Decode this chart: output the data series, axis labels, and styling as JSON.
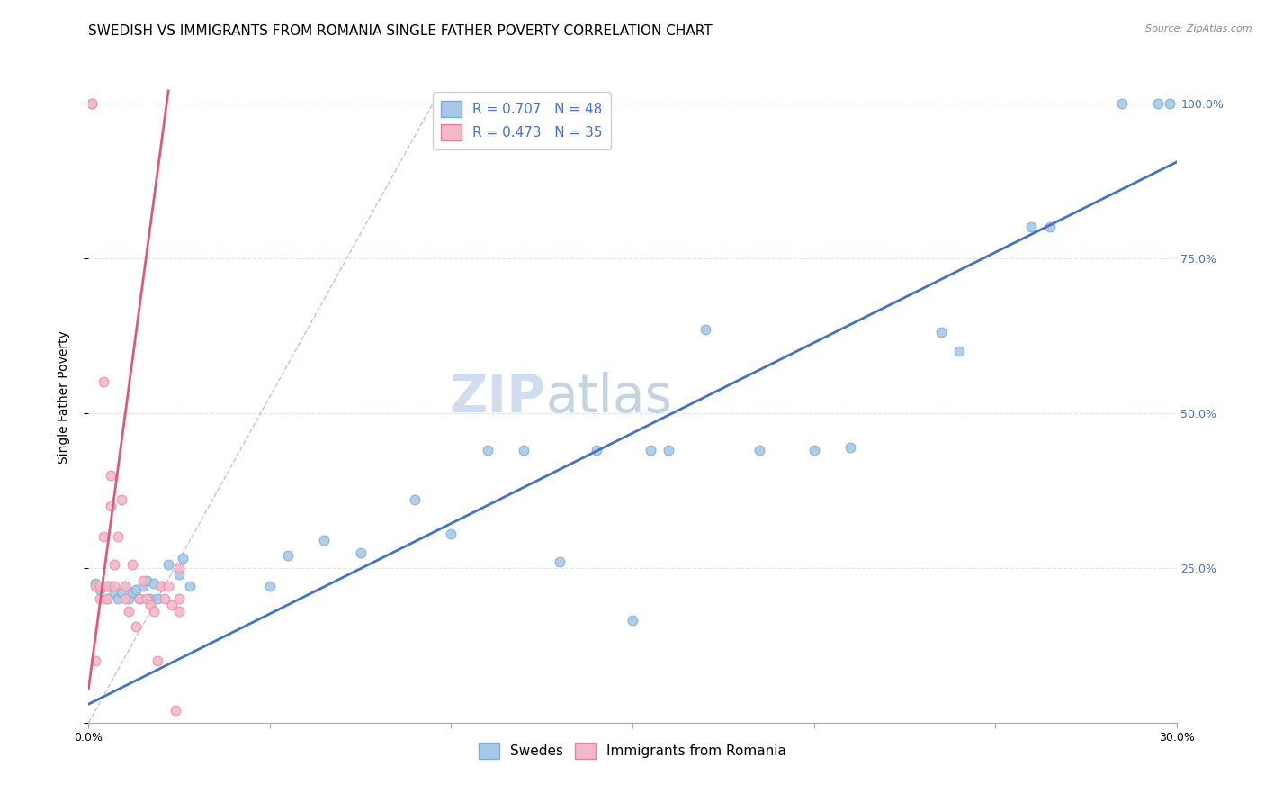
{
  "title": "SWEDISH VS IMMIGRANTS FROM ROMANIA SINGLE FATHER POVERTY CORRELATION CHART",
  "source": "Source: ZipAtlas.com",
  "ylabel": "Single Father Poverty",
  "xmin": 0.0,
  "xmax": 0.3,
  "ymin": 0.0,
  "ymax": 1.05,
  "right_yticks": [
    0.0,
    0.25,
    0.5,
    0.75,
    1.0
  ],
  "right_yticklabels": [
    "",
    "25.0%",
    "50.0%",
    "75.0%",
    "100.0%"
  ],
  "bottom_xtick_positions": [
    0.0,
    0.05,
    0.1,
    0.15,
    0.2,
    0.25,
    0.3
  ],
  "bottom_xtick_labels": [
    "0.0%",
    "",
    "",
    "",
    "",
    "",
    "30.0%"
  ],
  "legend_upper": [
    {
      "label": "R = 0.707   N = 48",
      "facecolor": "#a8c8e8",
      "edgecolor": "#7aafd4"
    },
    {
      "label": "R = 0.473   N = 35",
      "facecolor": "#f4b8c8",
      "edgecolor": "#e8809a"
    }
  ],
  "legend_lower": [
    {
      "label": "Swedes",
      "facecolor": "#a8c8e8",
      "edgecolor": "#7aafd4"
    },
    {
      "label": "Immigrants from Romania",
      "facecolor": "#f4b8c8",
      "edgecolor": "#e8809a"
    }
  ],
  "blue_scatter_x": [
    0.002,
    0.003,
    0.004,
    0.005,
    0.005,
    0.006,
    0.007,
    0.008,
    0.009,
    0.01,
    0.011,
    0.012,
    0.013,
    0.014,
    0.015,
    0.016,
    0.017,
    0.018,
    0.019,
    0.02,
    0.022,
    0.025,
    0.026,
    0.028,
    0.05,
    0.055,
    0.065,
    0.075,
    0.09,
    0.1,
    0.11,
    0.12,
    0.13,
    0.14,
    0.15,
    0.155,
    0.16,
    0.17,
    0.185,
    0.2,
    0.21,
    0.235,
    0.24,
    0.26,
    0.265,
    0.285,
    0.295,
    0.298
  ],
  "blue_scatter_y": [
    0.225,
    0.215,
    0.22,
    0.2,
    0.22,
    0.22,
    0.21,
    0.2,
    0.21,
    0.22,
    0.2,
    0.21,
    0.215,
    0.2,
    0.22,
    0.23,
    0.2,
    0.225,
    0.2,
    0.22,
    0.255,
    0.24,
    0.265,
    0.22,
    0.22,
    0.27,
    0.295,
    0.275,
    0.36,
    0.305,
    0.44,
    0.44,
    0.26,
    0.44,
    0.165,
    0.44,
    0.44,
    0.635,
    0.44,
    0.44,
    0.445,
    0.63,
    0.6,
    0.8,
    0.8,
    1.0,
    1.0,
    1.0
  ],
  "pink_scatter_x": [
    0.001,
    0.001,
    0.002,
    0.002,
    0.003,
    0.003,
    0.004,
    0.004,
    0.005,
    0.005,
    0.006,
    0.006,
    0.007,
    0.007,
    0.008,
    0.009,
    0.01,
    0.01,
    0.011,
    0.012,
    0.013,
    0.014,
    0.015,
    0.016,
    0.017,
    0.018,
    0.019,
    0.02,
    0.021,
    0.022,
    0.023,
    0.024,
    0.025,
    0.025,
    0.025
  ],
  "pink_scatter_y": [
    1.0,
    1.0,
    0.22,
    0.1,
    0.22,
    0.2,
    0.3,
    0.55,
    0.22,
    0.2,
    0.35,
    0.4,
    0.22,
    0.255,
    0.3,
    0.36,
    0.22,
    0.2,
    0.18,
    0.255,
    0.155,
    0.2,
    0.23,
    0.2,
    0.19,
    0.18,
    0.1,
    0.22,
    0.2,
    0.22,
    0.19,
    0.02,
    0.25,
    0.2,
    0.18
  ],
  "blue_line_x": [
    0.0,
    0.3
  ],
  "blue_line_y": [
    0.03,
    0.905
  ],
  "pink_line_x": [
    0.0,
    0.022
  ],
  "pink_line_y": [
    0.055,
    1.02
  ],
  "diag_line_x": [
    0.0,
    0.095
  ],
  "diag_line_y": [
    0.0,
    1.0
  ],
  "watermark_zip": "ZIP",
  "watermark_atlas": "atlas",
  "scatter_size": 60,
  "blue_color": "#a8c8e8",
  "blue_edge": "#7aafd4",
  "pink_color": "#f4b8c8",
  "pink_edge": "#e890a8",
  "blue_line_color": "#4472c4",
  "pink_line_color": "#e05878",
  "diag_line_color": "#c8b8c8",
  "grid_color": "#dde4ee",
  "bg_color": "#ffffff",
  "title_fontsize": 11,
  "axis_label_fontsize": 10,
  "tick_fontsize": 9,
  "legend_fontsize": 11,
  "watermark_color_zip": "#c8d8ec",
  "watermark_color_atlas": "#b8cce0",
  "watermark_fontsize": 42
}
